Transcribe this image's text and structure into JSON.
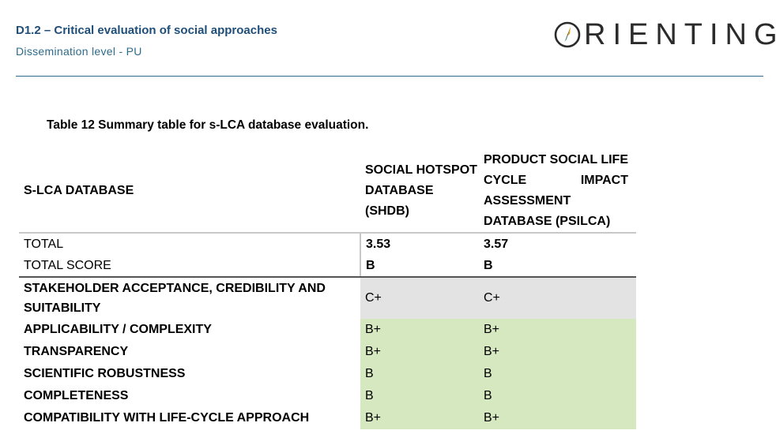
{
  "header": {
    "title": "D1.2 – Critical evaluation of social approaches",
    "dissemination": "Dissemination level - PU",
    "logo_text": "RIENTING"
  },
  "caption": "Table 12 Summary table for s-LCA database evaluation.",
  "table": {
    "col_headers": {
      "database": "S-LCA DATABASE",
      "shdb": "SOCIAL HOTSPOT DATABASE (SHDB)",
      "psilca": "PRODUCT SOCIAL LIFE CYCLE IMPACT ASSESSMENT DATABASE (PSILCA)"
    },
    "total": {
      "label": "TOTAL",
      "shdb": "3.53",
      "psilca": "3.57"
    },
    "total_score": {
      "label": "TOTAL SCORE",
      "shdb": "B",
      "psilca": "B"
    },
    "criteria": [
      {
        "label": "STAKEHOLDER ACCEPTANCE, CREDIBILITY AND SUITABILITY",
        "shdb": "C+",
        "psilca": "C+"
      },
      {
        "label": "APPLICABILITY / COMPLEXITY",
        "shdb": "B+",
        "psilca": "B+"
      },
      {
        "label": "TRANSPARENCY",
        "shdb": "B+",
        "psilca": "B+"
      },
      {
        "label": "SCIENTIFIC ROBUSTNESS",
        "shdb": "B",
        "psilca": "B"
      },
      {
        "label": "COMPLETENESS",
        "shdb": "B",
        "psilca": "B"
      },
      {
        "label": "COMPATIBILITY WITH LIFE-CYCLE APPROACH",
        "shdb": "B+",
        "psilca": "B+"
      }
    ]
  },
  "colors": {
    "grade_neutral": "#e3e3e3",
    "grade_good": "#d6e8c0",
    "brand": "#1f4e79"
  }
}
